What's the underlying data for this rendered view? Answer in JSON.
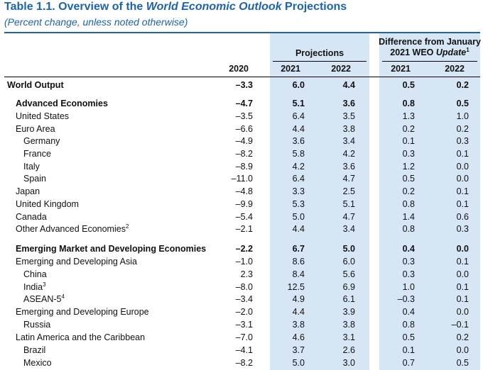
{
  "title": {
    "prefix": "Table 1.1. Overview of the ",
    "emph": "World Economic Outlook",
    "suffix": " Projections"
  },
  "subtitle": "(Percent change, unless noted otherwise)",
  "header": {
    "projections": "Projections",
    "difference_line1": "Difference from January",
    "difference_line2_prefix": "2021 WEO ",
    "difference_line2_emph": "Update",
    "difference_footnote": "1",
    "years": [
      "2020",
      "2021",
      "2022",
      "2021",
      "2022"
    ]
  },
  "colors": {
    "title": "#1d63ad",
    "band": "#d6e6f4"
  },
  "rows": [
    {
      "name": "World Output",
      "sup": "",
      "indent": 0,
      "bold": true,
      "values": [
        "–3.3",
        "6.0",
        "4.4",
        "0.5",
        "0.2"
      ]
    },
    {
      "name": "Advanced Economies",
      "sup": "",
      "indent": 1,
      "bold": true,
      "values": [
        "–4.7",
        "5.1",
        "3.6",
        "0.8",
        "0.5"
      ]
    },
    {
      "name": "United States",
      "sup": "",
      "indent": 1,
      "bold": false,
      "values": [
        "–3.5",
        "6.4",
        "3.5",
        "1.3",
        "1.0"
      ]
    },
    {
      "name": "Euro Area",
      "sup": "",
      "indent": 1,
      "bold": false,
      "values": [
        "–6.6",
        "4.4",
        "3.8",
        "0.2",
        "0.2"
      ]
    },
    {
      "name": "Germany",
      "sup": "",
      "indent": 2,
      "bold": false,
      "values": [
        "–4.9",
        "3.6",
        "3.4",
        "0.1",
        "0.3"
      ]
    },
    {
      "name": "France",
      "sup": "",
      "indent": 2,
      "bold": false,
      "values": [
        "–8.2",
        "5.8",
        "4.2",
        "0.3",
        "0.1"
      ]
    },
    {
      "name": "Italy",
      "sup": "",
      "indent": 2,
      "bold": false,
      "values": [
        "–8.9",
        "4.2",
        "3.6",
        "1.2",
        "0.0"
      ]
    },
    {
      "name": "Spain",
      "sup": "",
      "indent": 2,
      "bold": false,
      "values": [
        "–11.0",
        "6.4",
        "4.7",
        "0.5",
        "0.0"
      ]
    },
    {
      "name": "Japan",
      "sup": "",
      "indent": 1,
      "bold": false,
      "values": [
        "–4.8",
        "3.3",
        "2.5",
        "0.2",
        "0.1"
      ]
    },
    {
      "name": "United Kingdom",
      "sup": "",
      "indent": 1,
      "bold": false,
      "values": [
        "–9.9",
        "5.3",
        "5.1",
        "0.8",
        "0.1"
      ]
    },
    {
      "name": "Canada",
      "sup": "",
      "indent": 1,
      "bold": false,
      "values": [
        "–5.4",
        "5.0",
        "4.7",
        "1.4",
        "0.6"
      ]
    },
    {
      "name": "Other Advanced Economies",
      "sup": "2",
      "indent": 1,
      "bold": false,
      "values": [
        "–2.1",
        "4.4",
        "3.4",
        "0.8",
        "0.3"
      ]
    },
    {
      "name": "Emerging Market and Developing Economies",
      "sup": "",
      "indent": 1,
      "bold": true,
      "values": [
        "–2.2",
        "6.7",
        "5.0",
        "0.4",
        "0.0"
      ]
    },
    {
      "name": "Emerging and Developing Asia",
      "sup": "",
      "indent": 1,
      "bold": false,
      "values": [
        "–1.0",
        "8.6",
        "6.0",
        "0.3",
        "0.1"
      ]
    },
    {
      "name": "China",
      "sup": "",
      "indent": 2,
      "bold": false,
      "values": [
        "2.3",
        "8.4",
        "5.6",
        "0.3",
        "0.0"
      ]
    },
    {
      "name": "India",
      "sup": "3",
      "indent": 2,
      "bold": false,
      "values": [
        "–8.0",
        "12.5",
        "6.9",
        "1.0",
        "0.1"
      ]
    },
    {
      "name": "ASEAN-5",
      "sup": "4",
      "indent": 2,
      "bold": false,
      "values": [
        "–3.4",
        "4.9",
        "6.1",
        "–0.3",
        "0.1"
      ]
    },
    {
      "name": "Emerging and Developing Europe",
      "sup": "",
      "indent": 1,
      "bold": false,
      "values": [
        "–2.0",
        "4.4",
        "3.9",
        "0.4",
        "0.0"
      ]
    },
    {
      "name": "Russia",
      "sup": "",
      "indent": 2,
      "bold": false,
      "values": [
        "–3.1",
        "3.8",
        "3.8",
        "0.8",
        "–0.1"
      ]
    },
    {
      "name": "Latin America and the Caribbean",
      "sup": "",
      "indent": 1,
      "bold": false,
      "values": [
        "–7.0",
        "4.6",
        "3.1",
        "0.5",
        "0.2"
      ]
    },
    {
      "name": "Brazil",
      "sup": "",
      "indent": 2,
      "bold": false,
      "values": [
        "–4.1",
        "3.7",
        "2.6",
        "0.1",
        "0.0"
      ]
    },
    {
      "name": "Mexico",
      "sup": "",
      "indent": 2,
      "bold": false,
      "values": [
        "–8.2",
        "5.0",
        "3.0",
        "0.7",
        "0.5"
      ]
    }
  ]
}
